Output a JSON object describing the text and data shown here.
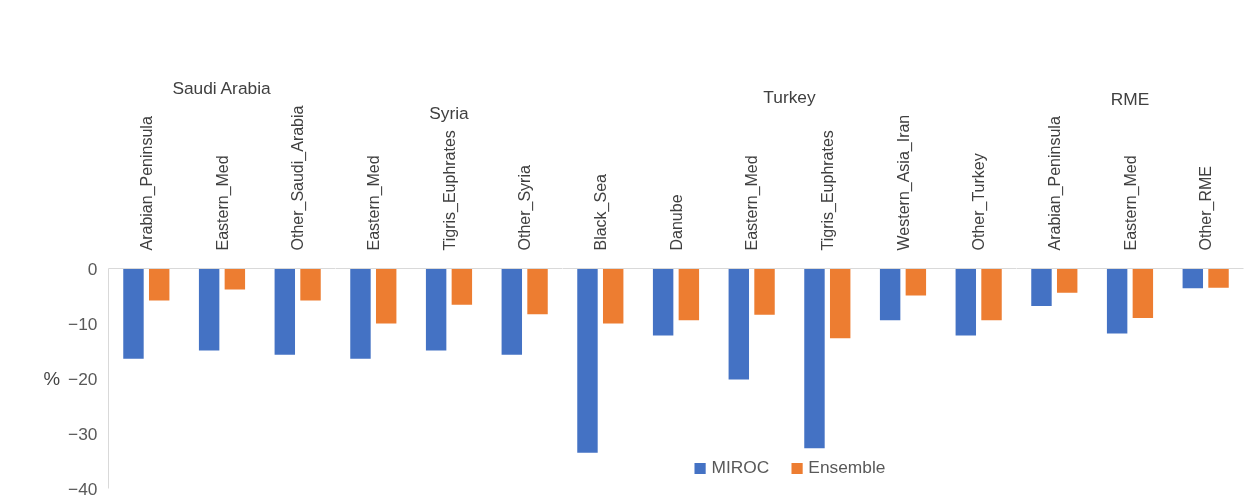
{
  "chart_data": [
    {
      "type": "bar",
      "title": "Saudi Arabia",
      "ylabel": "%",
      "categories": [
        "Arabian_Peninsula",
        "Eastern_Med",
        "Other_Saudi_Arabia"
      ],
      "ylim": [
        -40,
        0
      ],
      "yticks": [
        0,
        -10,
        -20,
        -30,
        -40
      ],
      "series": [
        {
          "color": "#4472c4",
          "values": [
            -16.4,
            -14.9,
            -15.7
          ]
        },
        {
          "color": "#ed7d31",
          "values": [
            -5.8,
            -3.8,
            -5.8
          ]
        }
      ]
    },
    {
      "type": "bar",
      "title": "Syria",
      "categories": [
        "Eastern_Med",
        "Tigris_Euphrates",
        "Other_Syria"
      ],
      "ylim": [
        -40,
        0
      ],
      "yticks": [
        0,
        -10,
        -20,
        -30,
        -40
      ],
      "tick_labels": "x",
      "series": [
        {
          "color": "#4472c4",
          "values": [
            -16.4,
            -14.9,
            -15.7
          ]
        },
        {
          "color": "#ed7d31",
          "values": [
            -10.0,
            -6.6,
            -8.3
          ]
        }
      ]
    },
    {
      "type": "bar",
      "title": "Turkey",
      "categories": [
        "Black_Sea",
        "Danube",
        "Eastern_Med",
        "Tigris_Euphrates",
        "Western_Asia_Iran",
        "Other_Turkey"
      ],
      "ylim": [
        -40,
        0
      ],
      "yticks": [
        0,
        -10,
        -20,
        -30,
        -40
      ],
      "tick_labels": "x",
      "legend": "bottom",
      "series": [
        {
          "name": "MIROC",
          "color": "#4472c4",
          "values": [
            -33.5,
            -12.2,
            -20.2,
            -32.7,
            -9.4,
            -12.2
          ]
        },
        {
          "name": "Ensemble",
          "color": "#ed7d31",
          "values": [
            -10.0,
            -9.4,
            -8.4,
            -12.7,
            -4.9,
            -9.4
          ]
        }
      ]
    },
    {
      "type": "bar",
      "title": "RME",
      "categories": [
        "Arabian_Peninsula",
        "Eastern_Med",
        "Other_RME"
      ],
      "ylim": [
        -40,
        0
      ],
      "yticks": [
        0,
        -10,
        -20,
        -30,
        -40
      ],
      "tick_labels": "x",
      "series": [
        {
          "color": "#4472c4",
          "values": [
            -6.8,
            -11.8,
            -3.6
          ]
        },
        {
          "color": "#ed7d31",
          "values": [
            -4.4,
            -9.0,
            -3.5
          ]
        }
      ]
    }
  ]
}
